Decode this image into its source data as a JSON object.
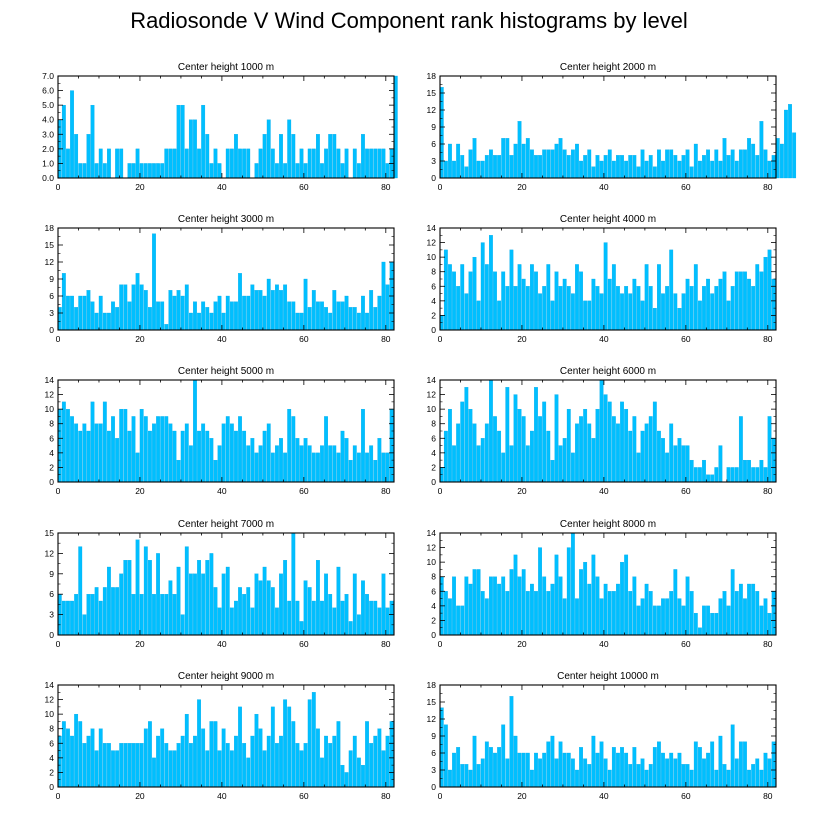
{
  "title": "Radiosonde V Wind Component rank histograms by level",
  "colors": {
    "bar": "#00BFFF",
    "bar_edge": "#00A7E6",
    "axis": "#000000"
  },
  "chart_data": [
    {
      "type": "bar",
      "title": "Center height 1000 m",
      "xlim": [
        0,
        82
      ],
      "ylim": [
        0,
        7
      ],
      "xticks": [
        0,
        20,
        40,
        60,
        80
      ],
      "yticks": [
        0,
        1,
        2,
        3,
        4,
        5,
        6,
        7
      ],
      "ytick_labels": [
        "0.0",
        "1.0",
        "2.0",
        "3.0",
        "4.0",
        "5.0",
        "6.0",
        "7.0"
      ],
      "values": [
        4,
        5,
        2,
        6,
        3,
        1,
        1,
        3,
        5,
        1,
        2,
        1,
        2,
        0,
        2,
        2,
        0,
        1,
        1,
        2,
        1,
        1,
        1,
        1,
        1,
        1,
        2,
        2,
        2,
        5,
        5,
        2,
        4,
        4,
        2,
        5,
        3,
        1,
        2,
        1,
        0,
        2,
        2,
        3,
        2,
        2,
        2,
        0,
        1,
        2,
        3,
        4,
        2,
        1,
        3,
        1,
        4,
        3,
        1,
        2,
        1,
        2,
        2,
        3,
        1,
        2,
        3,
        3,
        2,
        1,
        2,
        0,
        2,
        1,
        3,
        2,
        2,
        2,
        2,
        2,
        1,
        2,
        7
      ]
    },
    {
      "type": "bar",
      "title": "Center height 2000 m",
      "xlim": [
        0,
        82
      ],
      "ylim": [
        0,
        18
      ],
      "xticks": [
        0,
        20,
        40,
        60,
        80
      ],
      "yticks": [
        0,
        3,
        6,
        9,
        12,
        15,
        18
      ],
      "ytick_labels": [
        "0",
        "3",
        "6",
        "9",
        "12",
        "15",
        "18"
      ],
      "values": [
        16,
        3,
        6,
        3,
        6,
        4,
        2,
        5,
        7,
        3,
        3,
        4,
        5,
        4,
        4,
        7,
        7,
        4,
        6,
        10,
        6,
        7,
        5,
        4,
        4,
        5,
        5,
        5,
        6,
        7,
        5,
        4,
        5,
        6,
        3,
        4,
        5,
        2,
        4,
        3,
        4,
        5,
        3,
        4,
        4,
        3,
        4,
        4,
        2,
        5,
        3,
        4,
        2,
        5,
        3,
        5,
        5,
        4,
        3,
        4,
        5,
        2,
        6,
        3,
        4,
        5,
        3,
        5,
        3,
        7,
        4,
        5,
        3,
        5,
        5,
        7,
        6,
        4,
        10,
        5,
        3,
        4,
        7,
        6,
        12,
        13,
        8
      ]
    },
    {
      "type": "bar",
      "title": "Center height 3000 m",
      "xlim": [
        0,
        82
      ],
      "ylim": [
        0,
        18
      ],
      "xticks": [
        0,
        20,
        40,
        60,
        80
      ],
      "yticks": [
        0,
        3,
        6,
        9,
        12,
        15,
        18
      ],
      "ytick_labels": [
        "0",
        "3",
        "6",
        "9",
        "12",
        "15",
        "18"
      ],
      "values": [
        4,
        10,
        6,
        6,
        4,
        6,
        6,
        7,
        5,
        3,
        6,
        3,
        3,
        5,
        4,
        8,
        8,
        5,
        8,
        10,
        8,
        7,
        4,
        17,
        5,
        5,
        1,
        7,
        6,
        7,
        6,
        8,
        3,
        5,
        3,
        5,
        4,
        3,
        5,
        6,
        3,
        6,
        5,
        5,
        10,
        6,
        6,
        8,
        7,
        7,
        6,
        9,
        7,
        8,
        7,
        8,
        5,
        5,
        3,
        3,
        9,
        4,
        7,
        5,
        5,
        4,
        3,
        7,
        5,
        5,
        6,
        4,
        4,
        3,
        6,
        3,
        7,
        4,
        6,
        12,
        8,
        12
      ]
    },
    {
      "type": "bar",
      "title": "Center height 4000 m",
      "xlim": [
        0,
        82
      ],
      "ylim": [
        0,
        14
      ],
      "xticks": [
        0,
        20,
        40,
        60,
        80
      ],
      "yticks": [
        0,
        2,
        4,
        6,
        8,
        10,
        12,
        14
      ],
      "ytick_labels": [
        "0",
        "2",
        "4",
        "6",
        "8",
        "10",
        "12",
        "14"
      ],
      "values": [
        2,
        11,
        9,
        8,
        6,
        9,
        5,
        8,
        10,
        4,
        12,
        9,
        13,
        8,
        4,
        8,
        6,
        11,
        6,
        9,
        7,
        6,
        9,
        8,
        5,
        6,
        9,
        4,
        8,
        6,
        7,
        6,
        5,
        9,
        8,
        4,
        4,
        7,
        6,
        5,
        12,
        7,
        9,
        6,
        5,
        6,
        5,
        7,
        6,
        4,
        9,
        6,
        3,
        9,
        5,
        6,
        11,
        5,
        3,
        5,
        7,
        6,
        9,
        4,
        6,
        7,
        5,
        6,
        7,
        8,
        4,
        6,
        8,
        8,
        8,
        7,
        6,
        9,
        8,
        10,
        11,
        7
      ]
    },
    {
      "type": "bar",
      "title": "Center height 5000 m",
      "xlim": [
        0,
        82
      ],
      "ylim": [
        0,
        14
      ],
      "xticks": [
        0,
        20,
        40,
        60,
        80
      ],
      "yticks": [
        0,
        2,
        4,
        6,
        8,
        10,
        12,
        14
      ],
      "ytick_labels": [
        "0",
        "2",
        "4",
        "6",
        "8",
        "10",
        "12",
        "14"
      ],
      "values": [
        10,
        11,
        10,
        9,
        8,
        7,
        8,
        7,
        11,
        8,
        8,
        11,
        7,
        9,
        6,
        10,
        10,
        7,
        9,
        4,
        10,
        9,
        7,
        8,
        9,
        9,
        9,
        8,
        7,
        3,
        7,
        8,
        5,
        14,
        7,
        8,
        7,
        6,
        3,
        5,
        8,
        9,
        8,
        7,
        9,
        7,
        5,
        6,
        4,
        5,
        7,
        8,
        4,
        5,
        6,
        4,
        10,
        9,
        6,
        5,
        6,
        5,
        4,
        4,
        5,
        9,
        5,
        5,
        4,
        7,
        6,
        3,
        5,
        4,
        10,
        4,
        5,
        3,
        6,
        4,
        4,
        10
      ]
    },
    {
      "type": "bar",
      "title": "Center height 6000 m",
      "xlim": [
        0,
        82
      ],
      "ylim": [
        0,
        14
      ],
      "xticks": [
        0,
        20,
        40,
        60,
        80
      ],
      "yticks": [
        0,
        2,
        4,
        6,
        8,
        10,
        12,
        14
      ],
      "ytick_labels": [
        "0",
        "2",
        "4",
        "6",
        "8",
        "10",
        "12",
        "14"
      ],
      "values": [
        2,
        7,
        10,
        5,
        8,
        11,
        13,
        10,
        8,
        5,
        6,
        8,
        14,
        9,
        7,
        4,
        13,
        5,
        12,
        10,
        9,
        5,
        7,
        13,
        9,
        11,
        7,
        3,
        12,
        5,
        6,
        10,
        4,
        8,
        9,
        10,
        8,
        6,
        10,
        14,
        12,
        11,
        9,
        8,
        11,
        10,
        7,
        9,
        4,
        7,
        8,
        9,
        11,
        7,
        6,
        4,
        8,
        5,
        6,
        5,
        5,
        3,
        2,
        2,
        3,
        1,
        1,
        2,
        5,
        0,
        2,
        2,
        2,
        9,
        3,
        3,
        2,
        2,
        3,
        2,
        9,
        6
      ]
    },
    {
      "type": "bar",
      "title": "Center height 7000 m",
      "xlim": [
        0,
        82
      ],
      "ylim": [
        0,
        15
      ],
      "xticks": [
        0,
        20,
        40,
        60,
        80
      ],
      "yticks": [
        0,
        3,
        6,
        9,
        12,
        15
      ],
      "ytick_labels": [
        "0",
        "3",
        "6",
        "9",
        "12",
        "15"
      ],
      "values": [
        6,
        5,
        5,
        5,
        6,
        13,
        3,
        6,
        6,
        7,
        5,
        7,
        10,
        7,
        7,
        9,
        11,
        11,
        6,
        14,
        6,
        13,
        11,
        6,
        12,
        6,
        6,
        8,
        6,
        10,
        3,
        13,
        9,
        9,
        11,
        9,
        11,
        12,
        7,
        4,
        9,
        10,
        4,
        5,
        7,
        6,
        7,
        4,
        9,
        8,
        10,
        8,
        7,
        4,
        9,
        11,
        5,
        15,
        5,
        2,
        8,
        7,
        5,
        11,
        5,
        9,
        6,
        4,
        10,
        5,
        6,
        2,
        9,
        3,
        8,
        6,
        5,
        5,
        4,
        9,
        4,
        5
      ]
    },
    {
      "type": "bar",
      "title": "Center height 8000 m",
      "xlim": [
        0,
        82
      ],
      "ylim": [
        0,
        14
      ],
      "xticks": [
        0,
        20,
        40,
        60,
        80
      ],
      "yticks": [
        0,
        2,
        4,
        6,
        8,
        10,
        12,
        14
      ],
      "ytick_labels": [
        "0",
        "2",
        "4",
        "6",
        "8",
        "10",
        "12",
        "14"
      ],
      "values": [
        8,
        6,
        5,
        8,
        4,
        4,
        8,
        7,
        9,
        9,
        6,
        5,
        8,
        8,
        7,
        8,
        6,
        9,
        11,
        8,
        9,
        6,
        7,
        6,
        12,
        8,
        6,
        7,
        11,
        8,
        5,
        12,
        14,
        5,
        9,
        10,
        7,
        11,
        8,
        5,
        7,
        6,
        6,
        7,
        10,
        11,
        6,
        8,
        4,
        5,
        7,
        6,
        4,
        4,
        5,
        5,
        6,
        9,
        5,
        4,
        8,
        6,
        3,
        1,
        4,
        4,
        3,
        3,
        5,
        6,
        4,
        9,
        6,
        7,
        5,
        7,
        7,
        6,
        4,
        5,
        3,
        6
      ]
    },
    {
      "type": "bar",
      "title": "Center height 9000 m",
      "xlim": [
        0,
        82
      ],
      "ylim": [
        0,
        14
      ],
      "xticks": [
        0,
        20,
        40,
        60,
        80
      ],
      "yticks": [
        0,
        2,
        4,
        6,
        8,
        10,
        12,
        14
      ],
      "ytick_labels": [
        "0",
        "2",
        "4",
        "6",
        "8",
        "10",
        "12",
        "14"
      ],
      "values": [
        7,
        9,
        8,
        7,
        10,
        9,
        6,
        7,
        8,
        5,
        8,
        6,
        6,
        5,
        5,
        6,
        6,
        6,
        6,
        6,
        6,
        8,
        9,
        4,
        7,
        8,
        6,
        5,
        5,
        6,
        7,
        10,
        6,
        7,
        12,
        8,
        5,
        9,
        9,
        5,
        8,
        6,
        5,
        7,
        11,
        6,
        4,
        7,
        10,
        8,
        5,
        7,
        11,
        6,
        7,
        12,
        11,
        9,
        6,
        5,
        6,
        12,
        13,
        8,
        4,
        7,
        6,
        7,
        9,
        3,
        2,
        5,
        7,
        4,
        3,
        9,
        6,
        7,
        8,
        5,
        7,
        9
      ]
    },
    {
      "type": "bar",
      "title": "Center height 10000 m",
      "xlim": [
        0,
        82
      ],
      "ylim": [
        0,
        18
      ],
      "xticks": [
        0,
        20,
        40,
        60,
        80
      ],
      "yticks": [
        0,
        3,
        6,
        9,
        12,
        15,
        18
      ],
      "ytick_labels": [
        "0",
        "3",
        "6",
        "9",
        "12",
        "15",
        "18"
      ],
      "values": [
        14,
        11,
        3,
        6,
        7,
        4,
        4,
        3,
        9,
        4,
        5,
        8,
        7,
        6,
        7,
        11,
        5,
        16,
        9,
        6,
        6,
        6,
        3,
        6,
        5,
        6,
        8,
        9,
        5,
        8,
        6,
        6,
        5,
        3,
        7,
        5,
        4,
        9,
        6,
        8,
        5,
        3,
        7,
        6,
        7,
        6,
        4,
        7,
        4,
        5,
        3,
        4,
        7,
        8,
        6,
        5,
        6,
        5,
        6,
        4,
        4,
        3,
        8,
        7,
        5,
        6,
        8,
        3,
        9,
        4,
        3,
        11,
        5,
        8,
        8,
        3,
        4,
        5,
        3,
        6,
        5,
        8
      ]
    }
  ]
}
